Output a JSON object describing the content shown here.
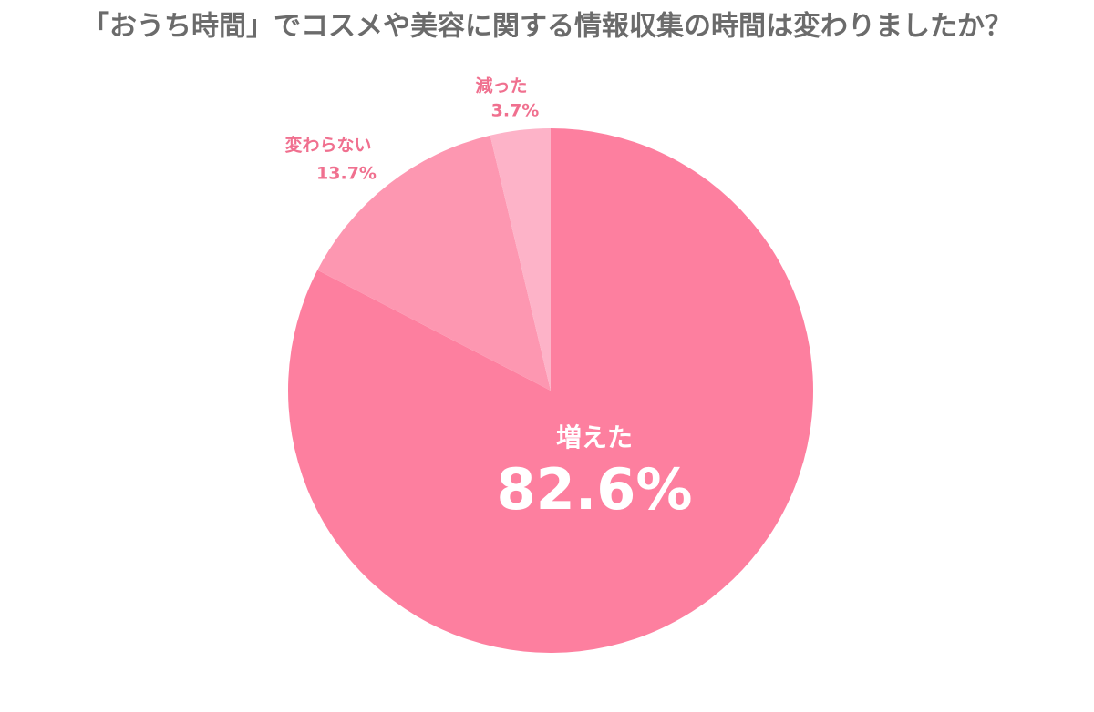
{
  "chart_data": {
    "type": "pie",
    "title": "「おうち時間」でコスメや美容に関する情報収集の時間は変わりましたか？",
    "categories": [
      "増えた",
      "変わらない",
      "減った"
    ],
    "values": [
      82.6,
      13.7,
      3.7
    ],
    "value_labels": [
      "82.6%",
      "13.7%",
      "3.7%"
    ],
    "colors": [
      "#fd7f9f",
      "#fd97b1",
      "#fdb3c8"
    ]
  }
}
